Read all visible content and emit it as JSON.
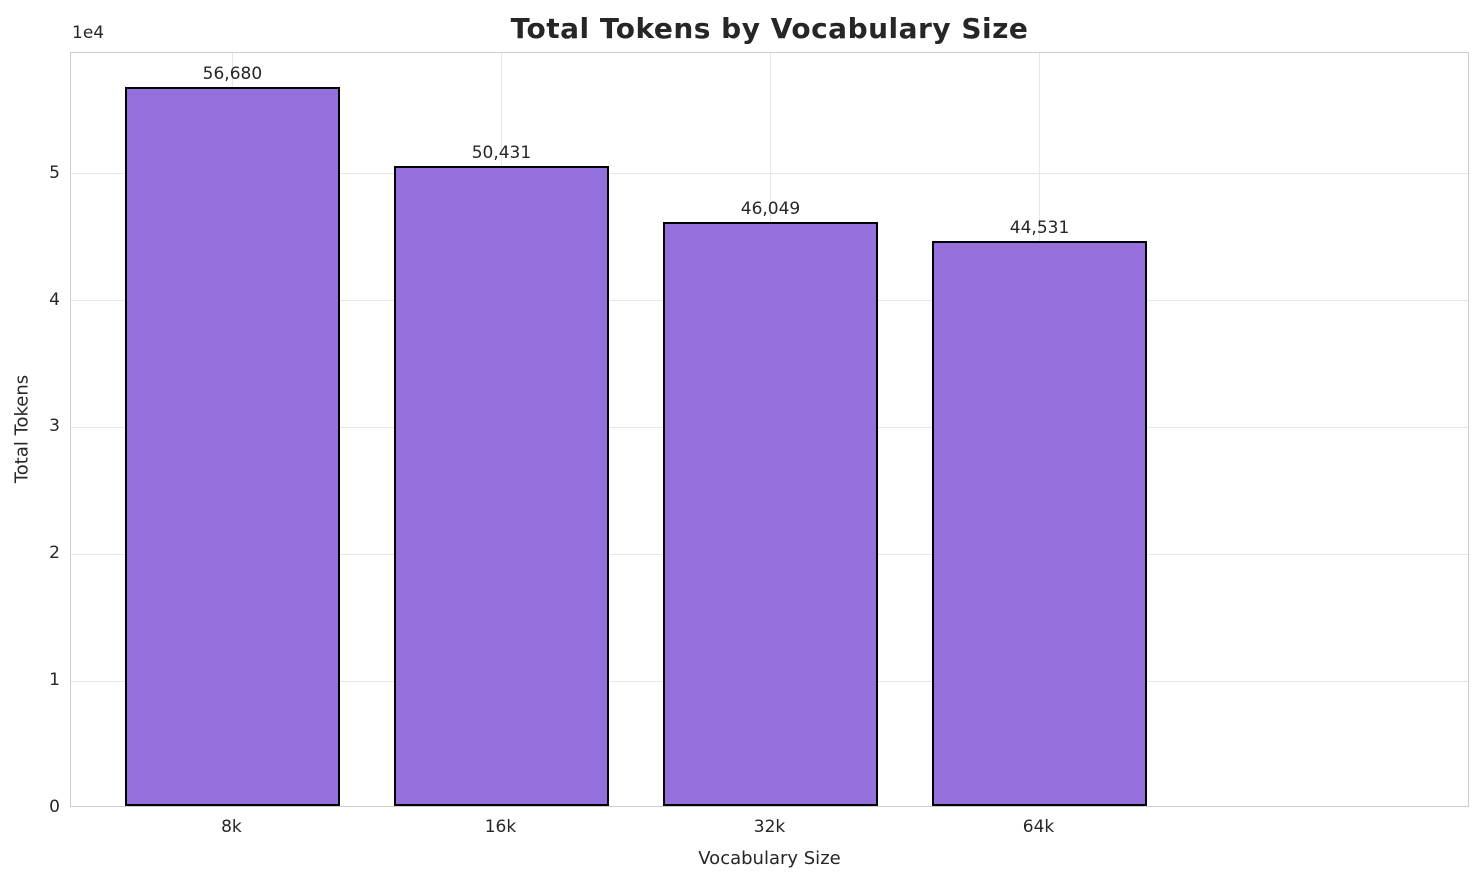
{
  "figure": {
    "title": "Total Tokens by Vocabulary Size",
    "xlabel": "Vocabulary Size",
    "ylabel": "Total Tokens",
    "y_offset_label": "1e4"
  },
  "chart_data": {
    "type": "bar",
    "title": "Total Tokens by Vocabulary Size",
    "xlabel": "Vocabulary Size",
    "ylabel": "Total Tokens",
    "categories": [
      "8k",
      "16k",
      "32k",
      "64k"
    ],
    "values": [
      56680,
      50431,
      46049,
      44531
    ],
    "value_labels": [
      "56,680",
      "50,431",
      "46,049",
      "44,531"
    ],
    "ylim": [
      0,
      59514
    ],
    "yticks": [
      0,
      10000,
      20000,
      30000,
      40000,
      50000
    ],
    "ytick_labels": [
      "0",
      "1",
      "2",
      "3",
      "4",
      "5"
    ],
    "y_offset_label": "1e4",
    "grid": true,
    "legend": false,
    "bar_color": "#9370DB",
    "bar_edge_color": "#000000",
    "grid_color": "#e7e7e7",
    "spine_color": "#cccccc",
    "text_color": "#262626"
  }
}
